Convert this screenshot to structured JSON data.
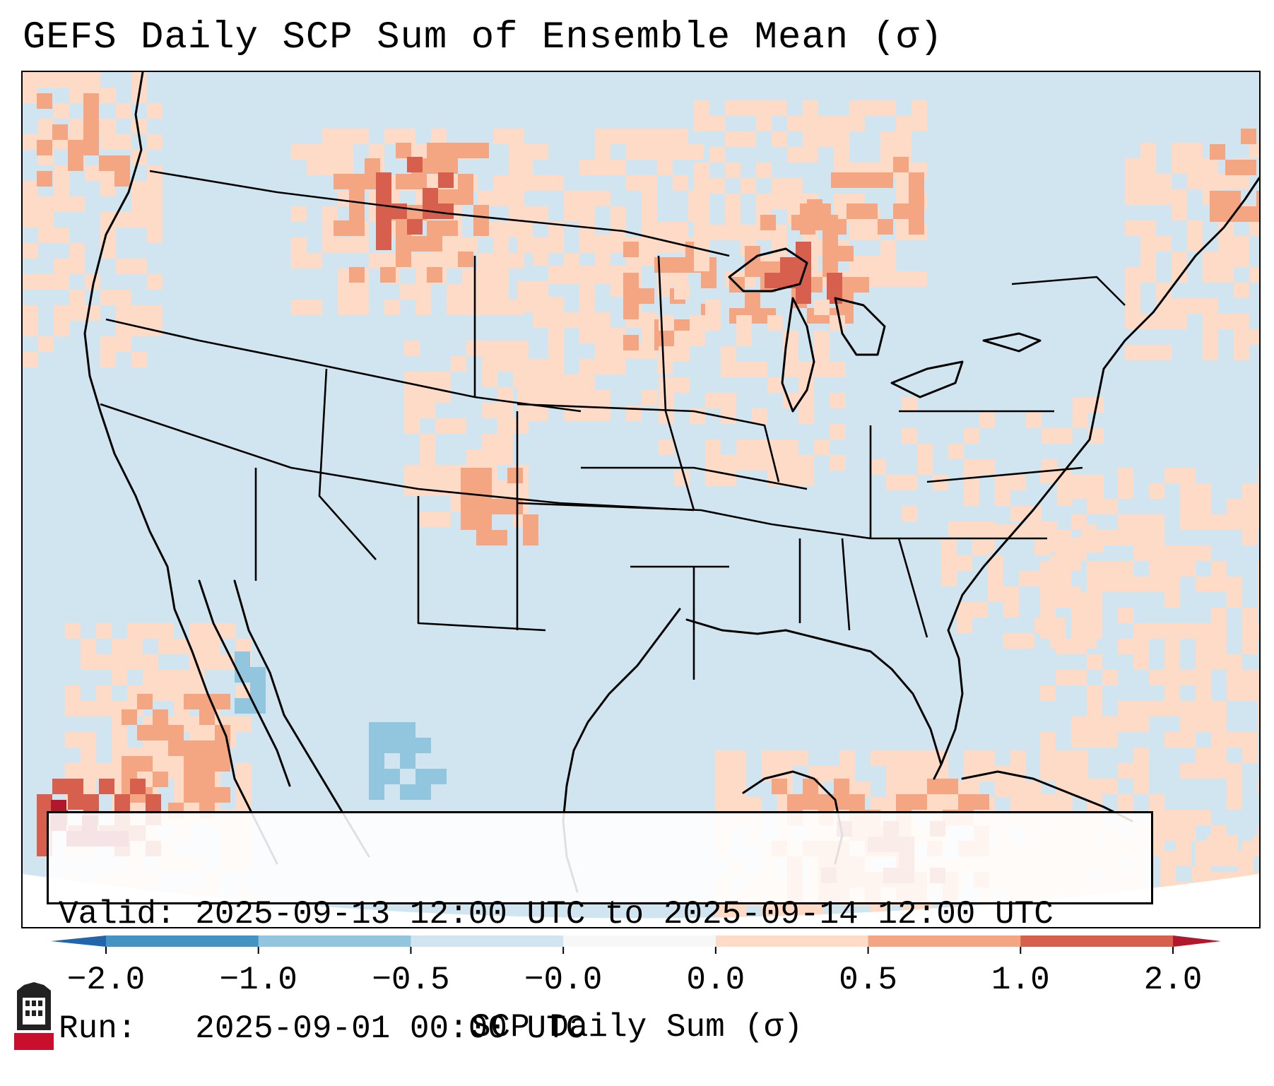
{
  "title": "GEFS Daily SCP Sum of Ensemble Mean (σ)",
  "info": {
    "valid_line": "Valid: 2025-09-13 12:00 UTC to 2025-09-14 12:00 UTC",
    "run_line": "Run:   2025-09-01 00:00 UTC"
  },
  "colorbar": {
    "label": "SCP Daily Sum (σ)",
    "ticks": [
      "−2.0",
      "−1.0",
      "−0.5",
      "−0.0",
      "0.0",
      "0.5",
      "1.0",
      "2.0"
    ],
    "colors": [
      "#4393c3",
      "#92c5de",
      "#d1e5f0",
      "#f7f7f7",
      "#fddbc7",
      "#f4a582",
      "#d6604d"
    ],
    "under_color": "#2166ac",
    "over_color": "#b2182b"
  },
  "map": {
    "region": "Contiguous United States",
    "background_color": "#d1e5f0",
    "anomaly_areas": [
      {
        "area": "Northern Plains / Montana",
        "category": "0.5 to 1.0",
        "color": "#f4a582"
      },
      {
        "area": "Dakotas and Minnesota",
        "category": "0.0 to 0.5",
        "color": "#fddbc7"
      },
      {
        "area": "Upper Michigan / Wisconsin",
        "category": "1.0 to 2.0",
        "color": "#d6604d"
      },
      {
        "area": "Southern Ontario",
        "category": "0.5 to 1.0",
        "color": "#f4a582"
      },
      {
        "area": "Colorado Front Range",
        "category": "0.5 to 1.0",
        "color": "#f4a582"
      },
      {
        "area": "Gulf of Mexico",
        "category": "0.5 to 1.0",
        "color": "#f4a582"
      },
      {
        "area": "Caribbean / Cuba",
        "category": "1.0 to 2.0",
        "color": "#d6604d"
      },
      {
        "area": "Eastern Pacific",
        "category": "1.0 to 2.0",
        "color": "#d6604d"
      },
      {
        "area": "Western Atlantic",
        "category": "0.0 to 0.5",
        "color": "#fddbc7"
      },
      {
        "area": "Northern Mexico",
        "category": "-0.5 to -1.0",
        "color": "#92c5de"
      }
    ]
  },
  "logo": {
    "text": "NIU",
    "color": "#c8102e"
  }
}
